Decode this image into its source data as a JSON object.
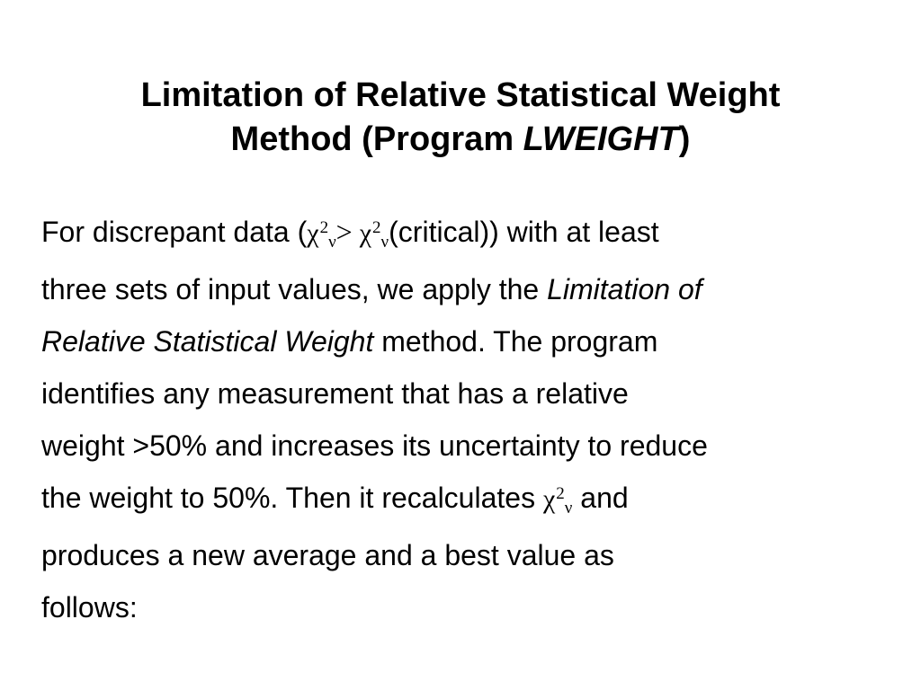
{
  "title": {
    "line1": "Limitation of Relative Statistical Weight",
    "line2_prefix": "Method (Program ",
    "line2_italic": "LWEIGHT",
    "line2_suffix": ")"
  },
  "body": {
    "line1_a": "For discrepant data (",
    "chi": "χ",
    "sup": "2",
    "nu": "ν",
    "gt": "> ",
    "line1_b": "(critical)) with at least",
    "line2_a": "three sets of input values, we apply the ",
    "line2_italic": "Limitation of",
    "line3_italic": "Relative Statistical Weight",
    "line3_b": " method.  The program",
    "line4": "identifies any measurement that has a relative",
    "line5": "weight >50% and increases its uncertainty to reduce",
    "line6_a": "the weight to 50%.  Then it recalculates ",
    "line6_b": " and",
    "line7": "produces a new average and a best value as",
    "line8": "follows:"
  }
}
